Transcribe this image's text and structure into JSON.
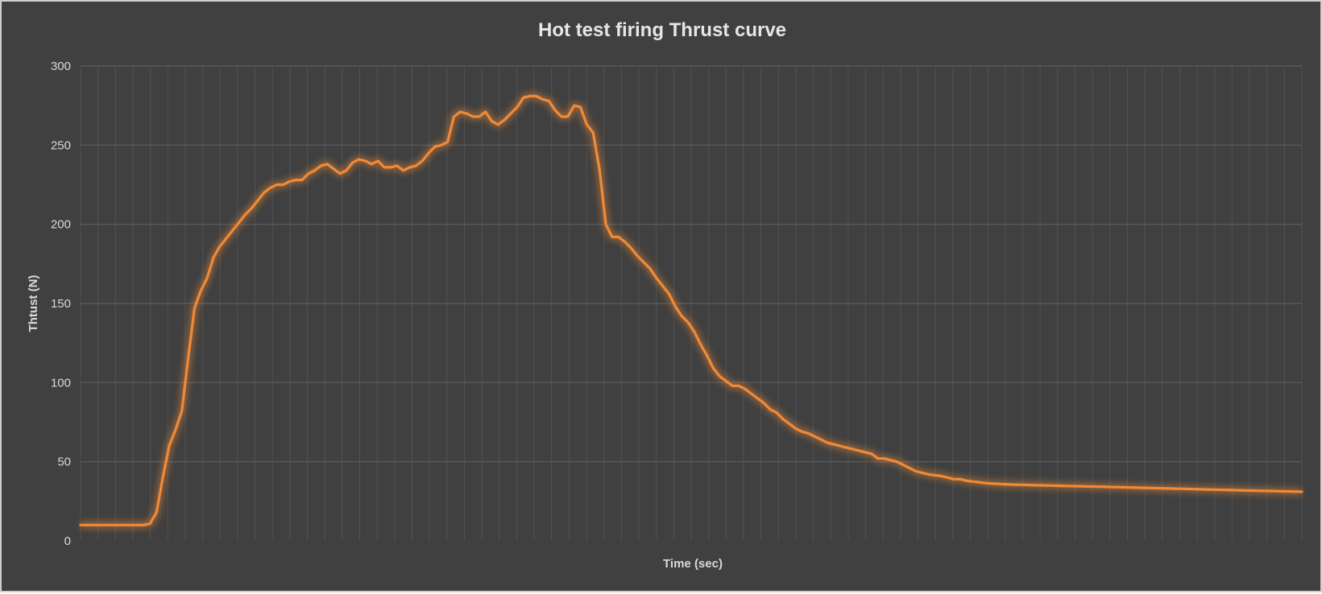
{
  "colors": {
    "background": "#404040",
    "line": "#f08a38",
    "glow": "#f08a38",
    "major_grid": "#5e5e5e",
    "minor_grid": "#525252",
    "text": "#d9d9d9",
    "title": "#e6e6e6"
  },
  "chart_data": {
    "type": "line",
    "title": "Hot test firing Thrust curve",
    "xlabel": "Time (sec)",
    "ylabel": "Thtust (N)",
    "ylim": [
      0,
      300
    ],
    "yticks": [
      0,
      50,
      100,
      150,
      200,
      250,
      300
    ],
    "xticks_labeled": false,
    "x_gridline_count": 71,
    "grid": true,
    "legend": "none",
    "series": [
      {
        "values": [
          10,
          10,
          10,
          10,
          10,
          10,
          10,
          10,
          10,
          10,
          10,
          11,
          18,
          40,
          60,
          70,
          82,
          115,
          147,
          158,
          166,
          179,
          186,
          191,
          196,
          201,
          206,
          210,
          215,
          220,
          223,
          225,
          225,
          227,
          228,
          228,
          232,
          234,
          237,
          238,
          235,
          232,
          234,
          239,
          241,
          240,
          238,
          240,
          236,
          236,
          237,
          234,
          236,
          237,
          240,
          245,
          249,
          250,
          252,
          268,
          271,
          270,
          268,
          268,
          271,
          265,
          263,
          266,
          270,
          274,
          280,
          281,
          281,
          279,
          278,
          272,
          268,
          268,
          275,
          274,
          263,
          258,
          235,
          200,
          192,
          192,
          189,
          185,
          180,
          176,
          172,
          166,
          161,
          156,
          148,
          142,
          138,
          132,
          124,
          117,
          109,
          104,
          101,
          98,
          98,
          96,
          93,
          90,
          87,
          83,
          81,
          77,
          74,
          71,
          69,
          68,
          66,
          64,
          62,
          61,
          60,
          59,
          58,
          57,
          56,
          55,
          52,
          52,
          51,
          50,
          48,
          46,
          44,
          43,
          42,
          41.5,
          41,
          40,
          39,
          39,
          38,
          37.5,
          37,
          36.5,
          36.2,
          36,
          35.8,
          35.6,
          35.5,
          35.4,
          35.3,
          35.2,
          35.1,
          35,
          34.9,
          34.8,
          34.7,
          34.6,
          34.5,
          34.4,
          34.3,
          34.2,
          34.1,
          34,
          33.9,
          33.8,
          33.7,
          33.6,
          33.5,
          33.4,
          33.3,
          33.2,
          33.1,
          33,
          32.9,
          32.8,
          32.7,
          32.6,
          32.5,
          32.4,
          32.3,
          32.2,
          32.1,
          32,
          31.9,
          31.8,
          31.7,
          31.6,
          31.5,
          31.4,
          31.3,
          31.2,
          31.1,
          31
        ]
      }
    ]
  }
}
